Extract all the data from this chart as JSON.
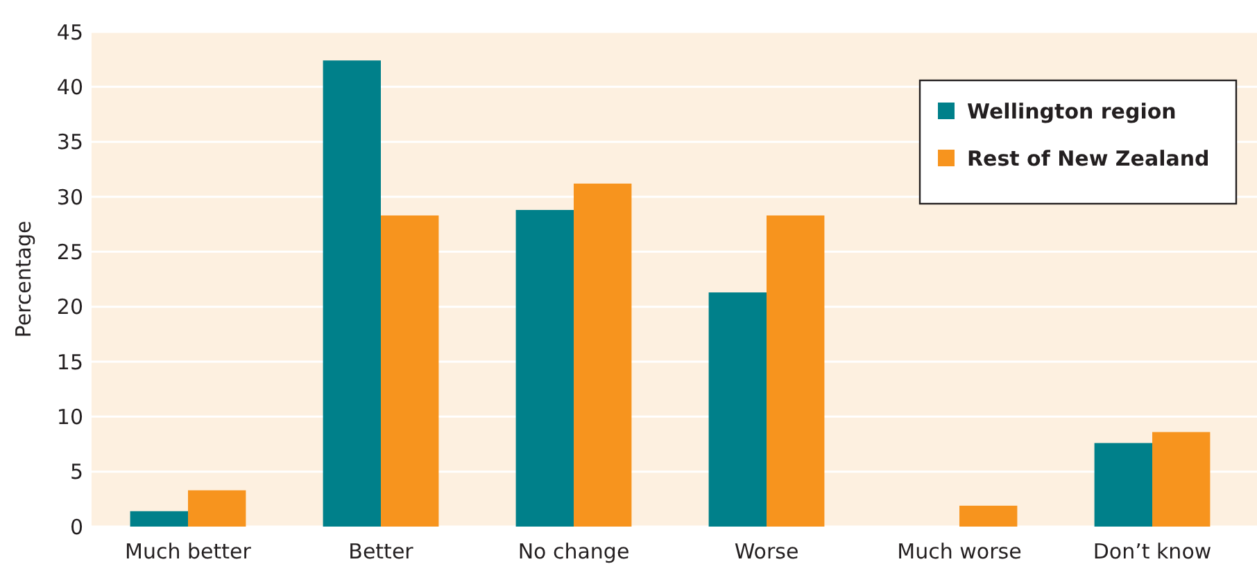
{
  "chart_data": {
    "type": "bar",
    "ylabel": "Percentage",
    "categories": [
      "Much better",
      "Better",
      "No change",
      "Worse",
      "Much worse",
      "Don’t know"
    ],
    "series": [
      {
        "name": "Wellington region",
        "color": "#00808a",
        "values": [
          1.4,
          42.4,
          28.8,
          21.3,
          0,
          7.6
        ]
      },
      {
        "name": "Rest of New Zealand",
        "color": "#f7941e",
        "values": [
          3.3,
          28.3,
          31.2,
          28.3,
          1.9,
          8.6
        ]
      }
    ],
    "ylim": [
      0,
      45
    ],
    "yticks": [
      0,
      5,
      10,
      15,
      20,
      25,
      30,
      35,
      40,
      45
    ],
    "grid": "y",
    "legend": "top right"
  }
}
